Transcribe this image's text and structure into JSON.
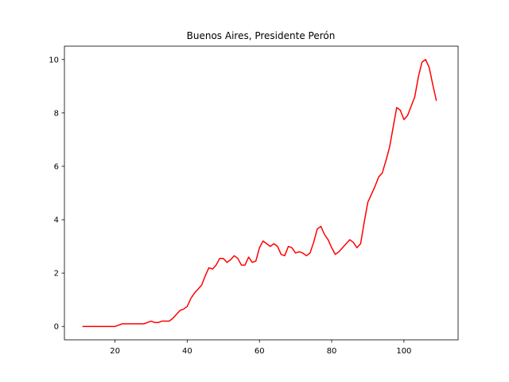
{
  "chart_data": {
    "type": "line",
    "title": "Buenos Aires, Presidente Perón",
    "xlabel": "",
    "ylabel": "",
    "xlim": [
      6,
      115
    ],
    "ylim": [
      -0.5,
      10.5
    ],
    "xticks": [
      20,
      40,
      60,
      80,
      100
    ],
    "yticks": [
      0,
      2,
      4,
      6,
      8,
      10
    ],
    "grid": false,
    "line_color": "#ff0000",
    "series": [
      {
        "x": [
          11,
          12,
          13,
          14,
          15,
          16,
          17,
          18,
          19,
          20,
          21,
          22,
          23,
          24,
          25,
          26,
          27,
          28,
          29,
          30,
          31,
          32,
          33,
          34,
          35,
          36,
          37,
          38,
          39,
          40,
          41,
          42,
          43,
          44,
          45,
          46,
          47,
          48,
          49,
          50,
          51,
          52,
          53,
          54,
          55,
          56,
          57,
          58,
          59,
          60,
          61,
          62,
          63,
          64,
          65,
          66,
          67,
          68,
          69,
          70,
          71,
          72,
          73,
          74,
          75,
          76,
          77,
          78,
          79,
          80,
          81,
          82,
          83,
          84,
          85,
          86,
          87,
          88,
          89,
          90,
          91,
          92,
          93,
          94,
          95,
          96,
          97,
          98,
          99,
          100,
          101,
          102,
          103,
          104,
          105,
          106,
          107,
          108,
          109
        ],
        "y": [
          0,
          0,
          0,
          0,
          0,
          0,
          0,
          0,
          0,
          0,
          0.05,
          0.1,
          0.1,
          0.1,
          0.1,
          0.1,
          0.1,
          0.1,
          0.15,
          0.2,
          0.15,
          0.15,
          0.2,
          0.2,
          0.2,
          0.3,
          0.45,
          0.6,
          0.65,
          0.75,
          1.05,
          1.25,
          1.4,
          1.55,
          1.9,
          2.2,
          2.15,
          2.3,
          2.55,
          2.55,
          2.4,
          2.5,
          2.65,
          2.55,
          2.3,
          2.3,
          2.6,
          2.4,
          2.45,
          2.95,
          3.2,
          3.1,
          3.0,
          3.1,
          3.0,
          2.7,
          2.65,
          3.0,
          2.95,
          2.75,
          2.8,
          2.75,
          2.65,
          2.75,
          3.15,
          3.65,
          3.75,
          3.45,
          3.25,
          2.95,
          2.7,
          2.8,
          2.95,
          3.1,
          3.25,
          3.15,
          2.95,
          3.1,
          3.9,
          4.65,
          4.95,
          5.25,
          5.6,
          5.75,
          6.2,
          6.7,
          7.45,
          8.2,
          8.1,
          7.75,
          7.9,
          8.25,
          8.6,
          9.35,
          9.9,
          10.0,
          9.7,
          9.05,
          8.45
        ]
      }
    ]
  }
}
